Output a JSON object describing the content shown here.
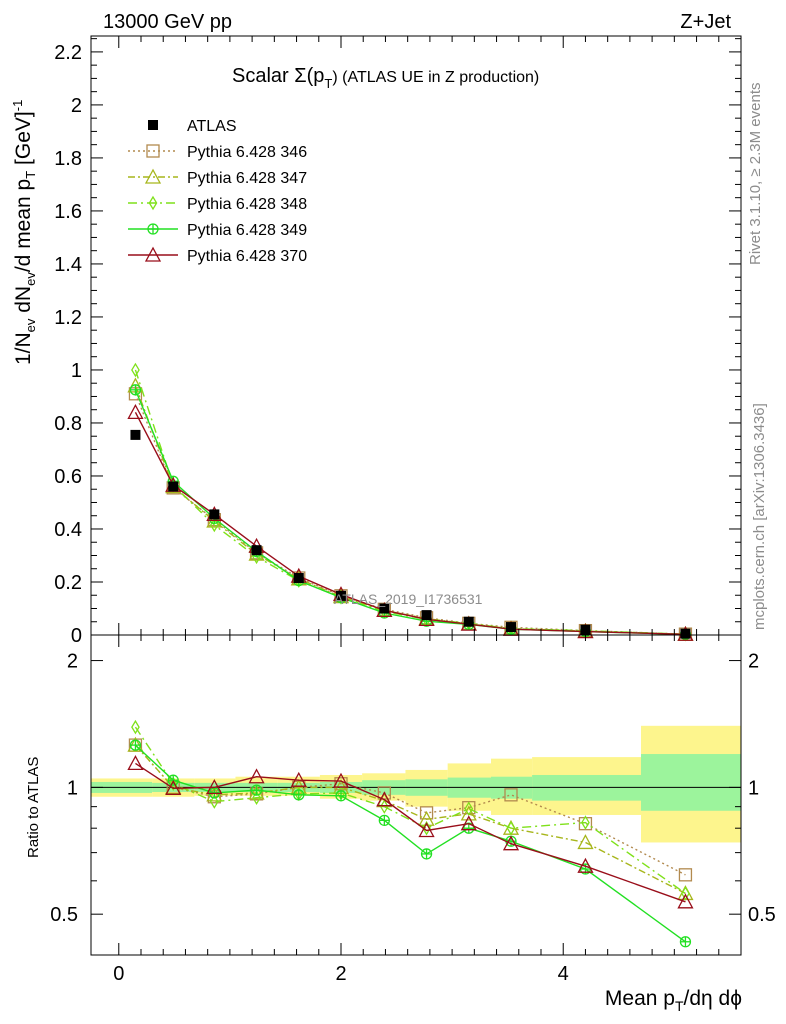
{
  "header": {
    "left": "13000 GeV pp",
    "right": "Z+Jet"
  },
  "side_text": {
    "rivet": "Rivet 3.1.10, ≥ 2.3M events",
    "mcplots": "mcplots.cern.ch [arXiv:1306.3436]"
  },
  "chart_data": [
    {
      "type": "line",
      "panel": "main",
      "title_main": "Scalar Σ(p",
      "title_sub": "T",
      "title_end": ") (ATLAS UE in Z production)",
      "ylabel": "1/N_ev dN_ev/d mean p_T [GeV]^-1",
      "ylabel_parts": [
        "1/N",
        "ev",
        " dN",
        "ev",
        "/d mean p",
        "T",
        " [GeV]",
        "-1"
      ],
      "watermark": "ATLAS_2019_I1736531",
      "xlim": [
        -0.25,
        5.6
      ],
      "ylim": [
        0,
        2.26
      ],
      "yticks": [
        "0",
        "0.2",
        "0.4",
        "0.6",
        "0.8",
        "1",
        "1.2",
        "1.4",
        "1.6",
        "1.8",
        "2",
        "2.2"
      ],
      "legend_position": "top-left",
      "x": [
        0.15,
        0.49,
        0.86,
        1.24,
        1.62,
        2.0,
        2.39,
        2.77,
        3.15,
        3.53,
        4.2,
        5.1
      ],
      "series": [
        {
          "name": "ATLAS",
          "color": "#000000",
          "marker": "square-filled",
          "dash": "",
          "values": [
            0.755,
            0.56,
            0.455,
            0.32,
            0.215,
            0.148,
            0.1,
            0.075,
            0.05,
            0.03,
            0.02,
            0.005
          ]
        },
        {
          "name": "Pythia 6.428 346",
          "color": "#b28a4f",
          "marker": "square-open",
          "dash": "2,3",
          "values": [
            0.91,
            0.555,
            0.435,
            0.31,
            0.215,
            0.148,
            0.097,
            0.065,
            0.044,
            0.029,
            0.0165,
            0.0033
          ]
        },
        {
          "name": "Pythia 6.428 347",
          "color": "#a7b61c",
          "marker": "triangle-open",
          "dash": "7,3,2,3",
          "values": [
            0.94,
            0.56,
            0.43,
            0.305,
            0.212,
            0.145,
            0.093,
            0.062,
            0.042,
            0.024,
            0.0148,
            0.0028
          ]
        },
        {
          "name": "Pythia 6.428 348",
          "color": "#7fe11a",
          "marker": "diamond-open",
          "dash": "9,4,2,4",
          "values": [
            1.0,
            0.565,
            0.415,
            0.295,
            0.205,
            0.142,
            0.089,
            0.059,
            0.044,
            0.024,
            0.0165,
            0.0028
          ]
        },
        {
          "name": "Pythia 6.428 349",
          "color": "#22e022",
          "marker": "cross-circle",
          "dash": "",
          "values": [
            0.925,
            0.58,
            0.44,
            0.315,
            0.205,
            0.141,
            0.083,
            0.052,
            0.04,
            0.022,
            0.013,
            0.0022
          ]
        },
        {
          "name": "Pythia 6.428 370",
          "color": "#990e1a",
          "marker": "triangle-open",
          "dash": "",
          "values": [
            0.84,
            0.565,
            0.455,
            0.335,
            0.222,
            0.153,
            0.093,
            0.059,
            0.041,
            0.022,
            0.013,
            0.0027
          ]
        }
      ]
    },
    {
      "type": "line",
      "panel": "ratio",
      "ylabel": "Ratio to ATLAS",
      "xlabel": "Mean p_T/dη dϕ",
      "xlabel_parts": [
        "Mean p",
        "T",
        "/dη dϕ"
      ],
      "xlim": [
        -0.25,
        5.6
      ],
      "ylim": [
        0.4,
        2.3
      ],
      "log_y": true,
      "xticks": [
        "0",
        "2",
        "4"
      ],
      "yticks": [
        "0.5",
        "1",
        "2"
      ],
      "band_edges": [
        -0.25,
        0.3,
        0.68,
        1.05,
        1.43,
        1.81,
        2.19,
        2.58,
        2.96,
        3.35,
        3.72,
        4.7,
        5.6
      ],
      "band_green": [
        [
          0.97,
          1.03
        ],
        [
          0.975,
          1.025
        ],
        [
          0.975,
          1.025
        ],
        [
          0.975,
          1.025
        ],
        [
          0.975,
          1.025
        ],
        [
          0.97,
          1.03
        ],
        [
          0.96,
          1.04
        ],
        [
          0.955,
          1.045
        ],
        [
          0.945,
          1.055
        ],
        [
          0.94,
          1.06
        ],
        [
          0.93,
          1.07
        ],
        [
          0.88,
          1.2
        ]
      ],
      "band_yellow": [
        [
          0.95,
          1.05
        ],
        [
          0.95,
          1.05
        ],
        [
          0.955,
          1.05
        ],
        [
          0.955,
          1.06
        ],
        [
          0.955,
          1.06
        ],
        [
          0.94,
          1.07
        ],
        [
          0.93,
          1.08
        ],
        [
          0.9,
          1.1
        ],
        [
          0.88,
          1.14
        ],
        [
          0.86,
          1.17
        ],
        [
          0.86,
          1.18
        ],
        [
          0.74,
          1.4
        ]
      ],
      "x": [
        0.15,
        0.49,
        0.86,
        1.24,
        1.62,
        2.0,
        2.39,
        2.77,
        3.15,
        3.53,
        4.2,
        5.1
      ],
      "series": [
        {
          "name": "Pythia 6.428 346",
          "color": "#b28a4f",
          "marker": "square-open",
          "dash": "2,3",
          "values": [
            1.26,
            1.0,
            0.95,
            0.965,
            1.0,
            1.02,
            0.97,
            0.87,
            0.895,
            0.96,
            0.82,
            0.62
          ]
        },
        {
          "name": "Pythia 6.428 347",
          "color": "#a7b61c",
          "marker": "triangle-open",
          "dash": "7,3,2,3",
          "values": [
            1.26,
            1.0,
            0.96,
            0.97,
            1.0,
            1.0,
            0.93,
            0.84,
            0.865,
            0.8,
            0.74,
            0.56
          ]
        },
        {
          "name": "Pythia 6.428 348",
          "color": "#7fe11a",
          "marker": "diamond-open",
          "dash": "9,4,2,4",
          "values": [
            1.39,
            1.02,
            0.925,
            0.945,
            0.965,
            0.97,
            0.9,
            0.8,
            0.89,
            0.8,
            0.825,
            0.56
          ]
        },
        {
          "name": "Pythia 6.428 349",
          "color": "#22e022",
          "marker": "cross-circle",
          "dash": "",
          "values": [
            1.26,
            1.04,
            0.97,
            0.985,
            0.96,
            0.955,
            0.835,
            0.695,
            0.8,
            0.745,
            0.64,
            0.43
          ]
        },
        {
          "name": "Pythia 6.428 370",
          "color": "#990e1a",
          "marker": "triangle-open",
          "dash": "",
          "values": [
            1.14,
            0.995,
            1.0,
            1.06,
            1.04,
            1.035,
            0.935,
            0.79,
            0.82,
            0.735,
            0.65,
            0.535
          ]
        }
      ]
    }
  ]
}
